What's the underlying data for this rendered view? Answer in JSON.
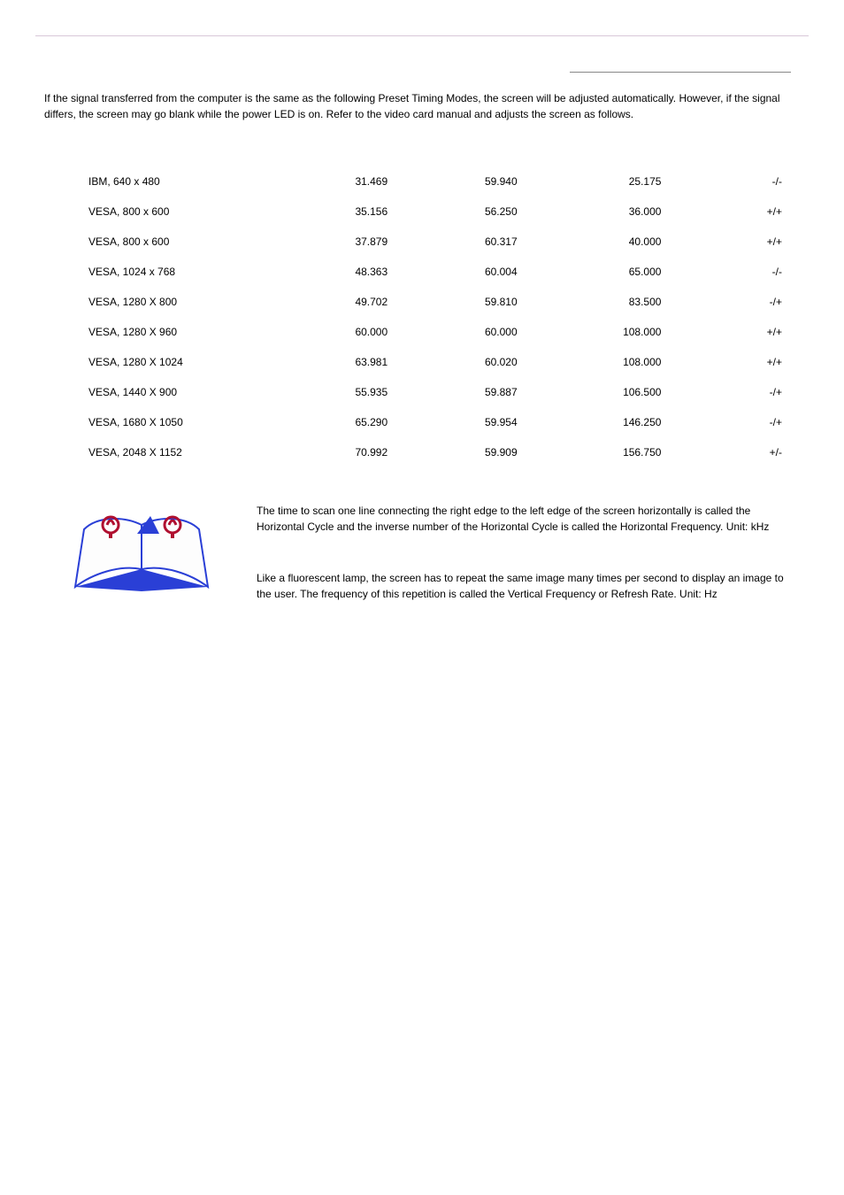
{
  "intro": "If the signal transferred from the computer is the same as the following Preset Timing Modes, the screen will be adjusted automatically. However, if the signal differs, the screen may go blank while the power LED is on. Refer to the video card manual and adjusts the screen as follows.",
  "table": {
    "rows": [
      [
        "IBM, 640 x 480",
        "31.469",
        "59.940",
        "25.175",
        "-/-"
      ],
      [
        "VESA, 800 x 600",
        "35.156",
        "56.250",
        "36.000",
        "+/+"
      ],
      [
        "VESA, 800 x 600",
        "37.879",
        "60.317",
        "40.000",
        "+/+"
      ],
      [
        "VESA, 1024 x 768",
        "48.363",
        "60.004",
        "65.000",
        "-/-"
      ],
      [
        "VESA, 1280 X 800",
        "49.702",
        "59.810",
        "83.500",
        "-/+"
      ],
      [
        "VESA, 1280 X 960",
        "60.000",
        "60.000",
        "108.000",
        "+/+"
      ],
      [
        "VESA, 1280 X 1024",
        "63.981",
        "60.020",
        "108.000",
        "+/+"
      ],
      [
        "VESA, 1440 X 900",
        "55.935",
        "59.887",
        "106.500",
        "-/+"
      ],
      [
        "VESA, 1680 X 1050",
        "65.290",
        "59.954",
        "146.250",
        "-/+"
      ],
      [
        "VESA, 2048 X 1152",
        "70.992",
        "59.909",
        "156.750",
        "+/-"
      ]
    ]
  },
  "definitions": {
    "hfreq": "The time to scan one line connecting the right edge to the left edge of the screen horizontally is called the Horizontal Cycle and the inverse number of the Horizontal Cycle is called the Horizontal Frequency. Unit: kHz",
    "vfreq": "Like a fluorescent lamp, the screen has to repeat the same image many times per second to display an image to the user. The frequency of this repetition is called the Vertical Frequency or Refresh Rate. Unit: Hz"
  },
  "colors": {
    "divider_light": "#d8c8d8",
    "divider_dark": "#888888",
    "icon_blue": "#2a3fd6",
    "icon_red": "#b01030",
    "text": "#000000"
  }
}
